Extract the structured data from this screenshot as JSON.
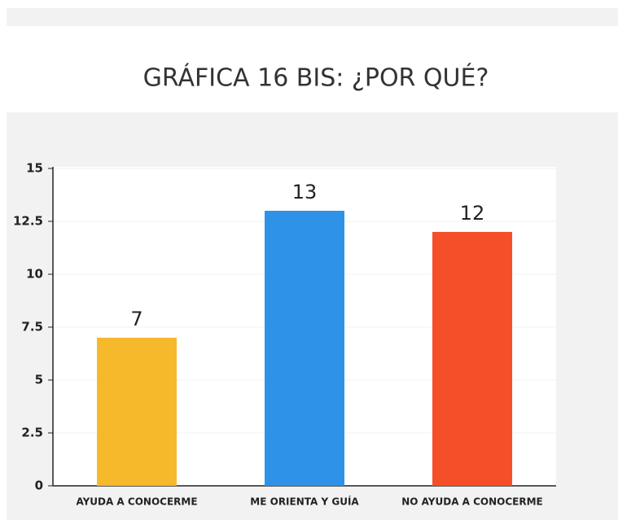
{
  "chart_data": {
    "type": "bar",
    "title": "GRÁFICA 16 BIS: ¿POR QUÉ?",
    "categories": [
      "AYUDA A CONOCERME",
      "ME ORIENTA Y GUÍA",
      "NO AYUDA A CONOCERME"
    ],
    "values": [
      7,
      13,
      12
    ],
    "colors": [
      "#f6b92b",
      "#2e93e8",
      "#f54f29"
    ],
    "ylim": [
      0,
      15
    ],
    "yticks": [
      0,
      2.5,
      5,
      7.5,
      10,
      12.5,
      15
    ],
    "grid": true
  }
}
